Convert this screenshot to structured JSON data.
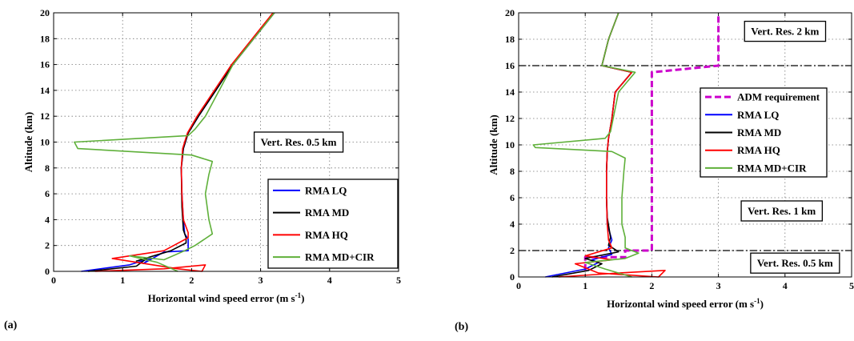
{
  "chart_data": [
    {
      "type": "line",
      "panel_label": "(a)",
      "xlabel": "Horizontal wind speed error (m s",
      "xlabel_sup": "-1",
      "xlabel_end": ")",
      "ylabel": "Altitude (km)",
      "xlim": [
        0,
        5
      ],
      "ylim": [
        0,
        20
      ],
      "xticks": [
        0,
        1,
        2,
        3,
        4,
        5
      ],
      "yticks": [
        0,
        2,
        4,
        6,
        8,
        10,
        12,
        14,
        16,
        18,
        20
      ],
      "grid": true,
      "legend_position": "lower-right",
      "series": [
        {
          "name": "RMA LQ",
          "color": "#0000ff",
          "points": [
            [
              0.4,
              0
            ],
            [
              1.1,
              0.5
            ],
            [
              1.4,
              1.0
            ],
            [
              1.3,
              0.6
            ],
            [
              1.6,
              1.5
            ],
            [
              1.95,
              1.6
            ],
            [
              1.95,
              2.5
            ],
            [
              1.9,
              2.9
            ],
            [
              1.88,
              4.0
            ],
            [
              1.86,
              6.0
            ],
            [
              1.85,
              8.0
            ],
            [
              1.88,
              9.5
            ],
            [
              1.95,
              10.7
            ],
            [
              2.1,
              12.0
            ],
            [
              2.35,
              14.0
            ],
            [
              2.6,
              16.0
            ],
            [
              2.9,
              18.0
            ],
            [
              3.2,
              20.0
            ]
          ]
        },
        {
          "name": "RMA MD",
          "color": "#000000",
          "points": [
            [
              0.5,
              0
            ],
            [
              1.2,
              0.4
            ],
            [
              1.35,
              1.0
            ],
            [
              1.2,
              0.8
            ],
            [
              1.7,
              1.6
            ],
            [
              1.92,
              2.2
            ],
            [
              1.92,
              2.6
            ],
            [
              1.88,
              3.2
            ],
            [
              1.86,
              5.0
            ],
            [
              1.85,
              8.0
            ],
            [
              1.88,
              9.5
            ],
            [
              1.95,
              10.7
            ],
            [
              2.1,
              12.0
            ],
            [
              2.35,
              14.0
            ],
            [
              2.6,
              16.0
            ],
            [
              2.9,
              18.0
            ],
            [
              3.2,
              20.0
            ]
          ]
        },
        {
          "name": "RMA HQ",
          "color": "#ff0000",
          "points": [
            [
              0.6,
              0
            ],
            [
              1.6,
              0.2
            ],
            [
              2.2,
              0.5
            ],
            [
              2.15,
              0
            ],
            [
              1.8,
              0.2
            ],
            [
              0.85,
              1.0
            ],
            [
              1.6,
              1.6
            ],
            [
              1.95,
              2.6
            ],
            [
              1.95,
              3.0
            ],
            [
              1.88,
              4.0
            ],
            [
              1.86,
              6.0
            ],
            [
              1.85,
              8.0
            ],
            [
              1.87,
              9.5
            ],
            [
              1.94,
              10.7
            ],
            [
              2.08,
              12.0
            ],
            [
              2.33,
              14.0
            ],
            [
              2.58,
              16.0
            ],
            [
              2.88,
              18.0
            ],
            [
              3.18,
              20.0
            ]
          ]
        },
        {
          "name": "RMA MD+CIR",
          "color": "#5fb03a",
          "points": [
            [
              1.8,
              0
            ],
            [
              1.5,
              0.7
            ],
            [
              1.1,
              1.2
            ],
            [
              1.6,
              0.9
            ],
            [
              1.9,
              1.6
            ],
            [
              2.05,
              2.0
            ],
            [
              2.3,
              2.9
            ],
            [
              2.25,
              4.0
            ],
            [
              2.2,
              6.0
            ],
            [
              2.25,
              7.5
            ],
            [
              2.3,
              8.5
            ],
            [
              2.0,
              9.0
            ],
            [
              0.35,
              9.5
            ],
            [
              0.3,
              10.0
            ],
            [
              1.95,
              10.5
            ],
            [
              2.05,
              11.0
            ],
            [
              2.2,
              12.0
            ],
            [
              2.4,
              14.0
            ],
            [
              2.6,
              16.0
            ],
            [
              2.9,
              18.0
            ],
            [
              3.2,
              20.0
            ]
          ]
        }
      ],
      "annotations": [
        {
          "text": "Vert. Res. 0.5 km",
          "x": 3.55,
          "y": 10.0
        }
      ]
    },
    {
      "type": "line",
      "panel_label": "(b)",
      "xlabel": "Horizontal wind speed error (m s",
      "xlabel_sup": "-1",
      "xlabel_end": ")",
      "ylabel": "Altitude (km)",
      "xlim": [
        0,
        5
      ],
      "ylim": [
        0,
        20
      ],
      "xticks": [
        0,
        1,
        2,
        3,
        4,
        5
      ],
      "yticks": [
        0,
        2,
        4,
        6,
        8,
        10,
        12,
        14,
        16,
        18,
        20
      ],
      "grid": true,
      "legend_position": "center-right",
      "series": [
        {
          "name": "ADM requirement",
          "color": "#cc00cc",
          "dashed": true,
          "points": [
            [
              1.0,
              0.5
            ],
            [
              1.0,
              1.5
            ],
            [
              1.6,
              1.5
            ],
            [
              1.6,
              2.0
            ],
            [
              2.0,
              2.0
            ],
            [
              2.0,
              15.5
            ],
            [
              3.0,
              16.0
            ],
            [
              3.0,
              20.0
            ]
          ]
        },
        {
          "name": "RMA LQ",
          "color": "#0000ff",
          "points": [
            [
              0.4,
              0
            ],
            [
              1.0,
              0.6
            ],
            [
              1.2,
              1.1
            ],
            [
              1.1,
              1.3
            ],
            [
              1.4,
              1.7
            ],
            [
              1.35,
              2.2
            ],
            [
              1.4,
              2.8
            ],
            [
              1.33,
              4.0
            ],
            [
              1.32,
              6.0
            ],
            [
              1.32,
              8.0
            ],
            [
              1.33,
              9.5
            ],
            [
              1.35,
              10.5
            ],
            [
              1.4,
              12.0
            ],
            [
              1.45,
              14.0
            ],
            [
              1.7,
              15.5
            ],
            [
              1.25,
              16.0
            ],
            [
              1.35,
              18.0
            ],
            [
              1.5,
              20.0
            ]
          ]
        },
        {
          "name": "RMA MD",
          "color": "#000000",
          "points": [
            [
              0.5,
              0
            ],
            [
              1.05,
              0.5
            ],
            [
              1.25,
              1.0
            ],
            [
              1.0,
              1.4
            ],
            [
              1.5,
              1.9
            ],
            [
              1.35,
              2.4
            ],
            [
              1.38,
              3.0
            ],
            [
              1.33,
              4.5
            ],
            [
              1.32,
              6.0
            ],
            [
              1.32,
              8.0
            ],
            [
              1.33,
              9.5
            ],
            [
              1.35,
              10.5
            ],
            [
              1.4,
              12.0
            ],
            [
              1.45,
              14.0
            ],
            [
              1.7,
              15.5
            ],
            [
              1.25,
              16.0
            ],
            [
              1.35,
              18.0
            ],
            [
              1.5,
              20.0
            ]
          ]
        },
        {
          "name": "RMA HQ",
          "color": "#ff0000",
          "points": [
            [
              0.6,
              0
            ],
            [
              1.5,
              0.3
            ],
            [
              2.2,
              0.5
            ],
            [
              2.1,
              0
            ],
            [
              1.2,
              0.3
            ],
            [
              0.85,
              1.0
            ],
            [
              1.4,
              1.3
            ],
            [
              1.0,
              1.6
            ],
            [
              1.4,
              2.2
            ],
            [
              1.35,
              2.8
            ],
            [
              1.33,
              4.0
            ],
            [
              1.32,
              6.0
            ],
            [
              1.32,
              8.0
            ],
            [
              1.33,
              9.5
            ],
            [
              1.35,
              10.5
            ],
            [
              1.4,
              12.0
            ],
            [
              1.45,
              14.0
            ],
            [
              1.7,
              15.5
            ],
            [
              1.25,
              16.0
            ],
            [
              1.35,
              18.0
            ],
            [
              1.5,
              20.0
            ]
          ]
        },
        {
          "name": "RMA MD+CIR",
          "color": "#5fb03a",
          "points": [
            [
              1.7,
              0
            ],
            [
              1.3,
              0.6
            ],
            [
              1.0,
              1.1
            ],
            [
              1.6,
              1.4
            ],
            [
              1.8,
              1.8
            ],
            [
              1.6,
              2.2
            ],
            [
              1.6,
              3.0
            ],
            [
              1.55,
              4.0
            ],
            [
              1.55,
              6.0
            ],
            [
              1.58,
              8.0
            ],
            [
              1.6,
              9.0
            ],
            [
              1.4,
              9.5
            ],
            [
              0.25,
              9.8
            ],
            [
              0.22,
              10.0
            ],
            [
              1.3,
              10.5
            ],
            [
              1.38,
              11.0
            ],
            [
              1.42,
              12.0
            ],
            [
              1.5,
              14.0
            ],
            [
              1.75,
              15.5
            ],
            [
              1.25,
              16.0
            ],
            [
              1.35,
              18.0
            ],
            [
              1.5,
              20.0
            ]
          ]
        }
      ],
      "hlines": [
        2,
        16
      ],
      "annotations": [
        {
          "text": "Vert. Res. 2 km",
          "x": 4.0,
          "y": 18.6
        },
        {
          "text": "Vert. Res. 1 km",
          "x": 3.95,
          "y": 5.0
        },
        {
          "text": "Vert. Res. 0.5 km",
          "x": 4.15,
          "y": 1.05
        }
      ]
    }
  ]
}
